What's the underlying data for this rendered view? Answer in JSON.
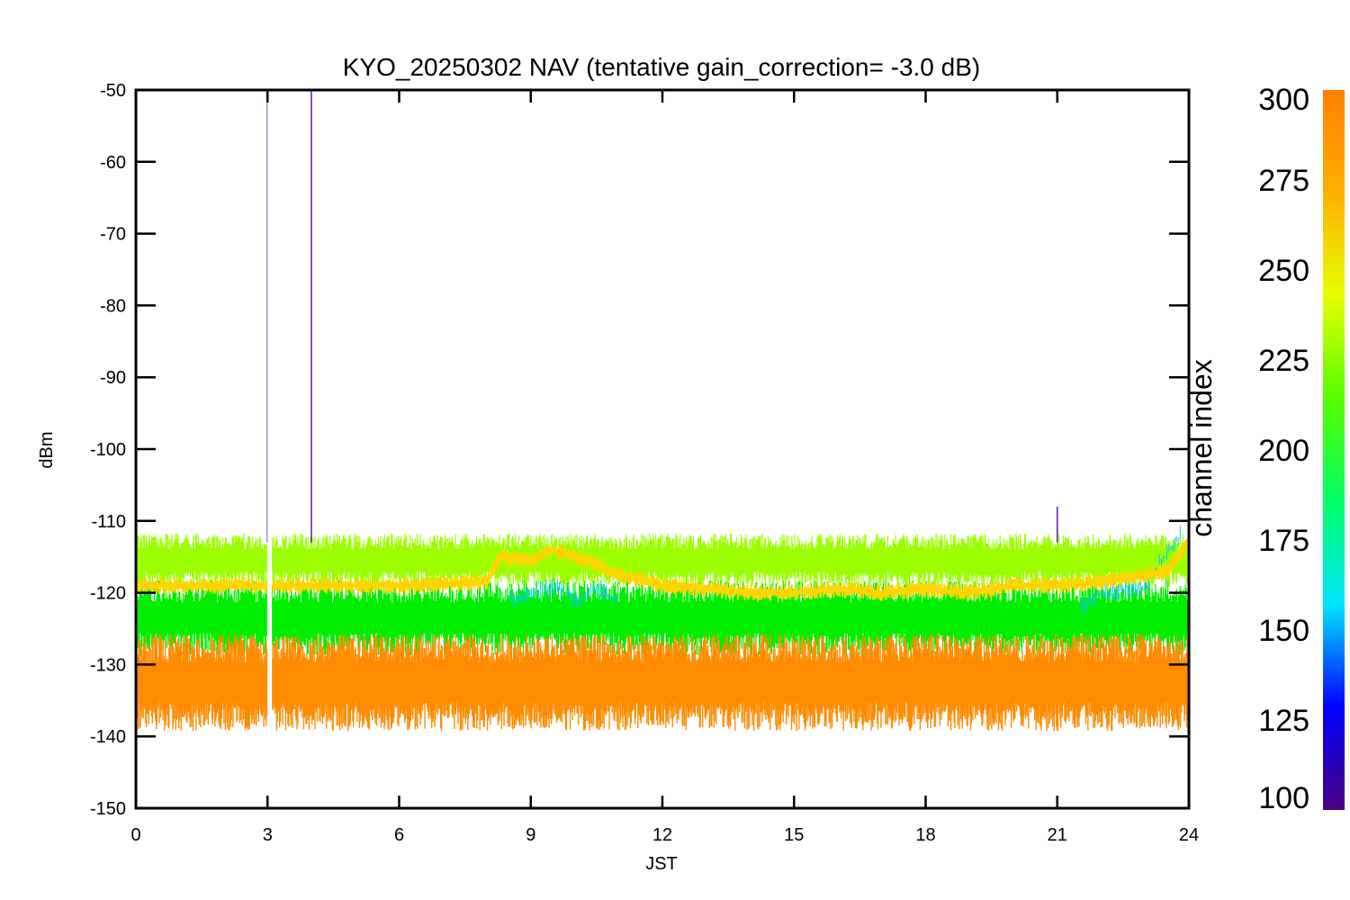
{
  "chart_data": {
    "type": "line",
    "title": "KYO_20250302 NAV (tentative gain_correction= -3.0 dB)",
    "xlabel": "JST",
    "ylabel": "dBm",
    "xlim": [
      0,
      24
    ],
    "ylim": [
      -150,
      -50
    ],
    "x_ticks": [
      "0",
      "3",
      "6",
      "9",
      "12",
      "15",
      "18",
      "21",
      "24"
    ],
    "y_ticks": [
      "-50",
      "-60",
      "-70",
      "-80",
      "-90",
      "-100",
      "-110",
      "-120",
      "-130",
      "-140",
      "-150"
    ],
    "colorbar": {
      "label": "channel index",
      "range": [
        100,
        300
      ],
      "ticks": [
        "300",
        "275",
        "250",
        "225",
        "200",
        "175",
        "150",
        "125",
        "100"
      ],
      "colormap": [
        "#4b0082",
        "#0000ff",
        "#00e5ff",
        "#00ff66",
        "#55ff00",
        "#e6ff00",
        "#ffb000",
        "#ff7f00"
      ]
    },
    "series": [
      {
        "channel": 290,
        "color": "#ff8c00",
        "band_low": -137,
        "band_high": -128,
        "mean_points": [
          [
            0,
            -132.5
          ],
          [
            6,
            -132.5
          ],
          [
            12,
            -132.5
          ],
          [
            18,
            -132.5
          ],
          [
            24,
            -132.5
          ]
        ]
      },
      {
        "channel": 260,
        "color": "#ffd400",
        "mean_points": [
          [
            0,
            -119
          ],
          [
            3,
            -119
          ],
          [
            6,
            -119
          ],
          [
            8,
            -118.5
          ],
          [
            8.3,
            -115
          ],
          [
            9,
            -115.5
          ],
          [
            9.5,
            -114
          ],
          [
            10.3,
            -115.5
          ],
          [
            11,
            -117.5
          ],
          [
            12,
            -119
          ],
          [
            13,
            -119.5
          ],
          [
            14,
            -120
          ],
          [
            15,
            -120
          ],
          [
            16,
            -119.5
          ],
          [
            17,
            -120
          ],
          [
            18,
            -119.5
          ],
          [
            19,
            -120
          ],
          [
            20,
            -119
          ],
          [
            21,
            -119
          ],
          [
            22,
            -118.5
          ],
          [
            23,
            -117.5
          ],
          [
            23.5,
            -117
          ],
          [
            24,
            -113
          ]
        ]
      },
      {
        "channel": 245,
        "color": "#9cff00",
        "band_low": -118,
        "band_high": -113,
        "mean_points": [
          [
            0,
            -116
          ],
          [
            24,
            -116
          ]
        ]
      },
      {
        "channel": 215,
        "color": "#00ee00",
        "band_low": -127,
        "band_high": -120,
        "mean_points": [
          [
            0,
            -123.5
          ],
          [
            24,
            -123.5
          ]
        ]
      },
      {
        "channel": 180,
        "color": "#00c8ff",
        "mean_points": [
          [
            8.5,
            -121
          ],
          [
            9,
            -120
          ],
          [
            9.5,
            -119
          ],
          [
            10,
            -121
          ],
          [
            10.5,
            -119.5
          ],
          [
            11,
            -121
          ],
          [
            21.5,
            -122
          ],
          [
            22,
            -120
          ],
          [
            23,
            -119
          ],
          [
            23.8,
            -112
          ]
        ]
      },
      {
        "channel": 110,
        "color": "#5a1a9a",
        "spikes": [
          [
            3,
            -51
          ],
          [
            4,
            -50
          ],
          [
            21,
            -108
          ]
        ]
      }
    ],
    "data_gap": [
      3.0,
      3.1
    ],
    "grid": false,
    "legend": "colorbar-right"
  }
}
